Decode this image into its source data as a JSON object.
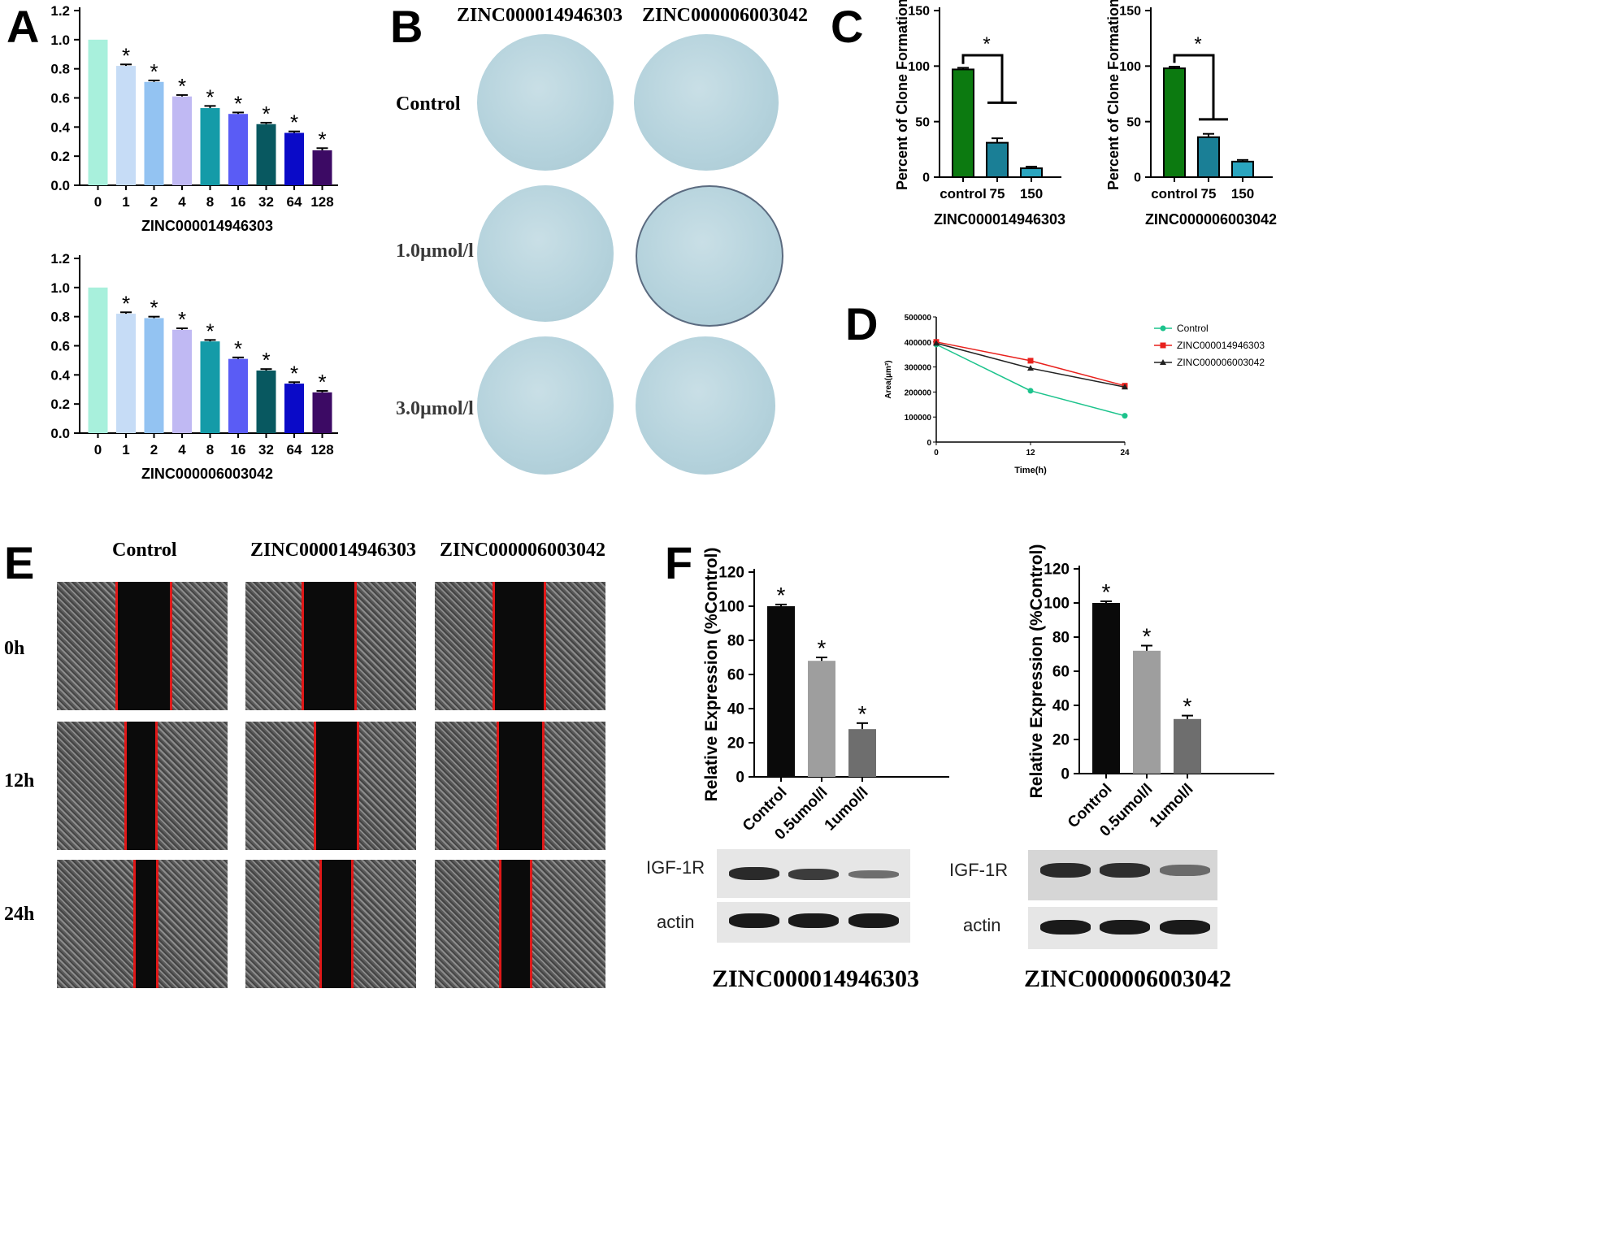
{
  "panels": {
    "A": "A",
    "B": "B",
    "C": "C",
    "D": "D",
    "E": "E",
    "F": "F"
  },
  "colors": {
    "bar_a": [
      "#a8f0dc",
      "#c6dcf6",
      "#93c3f2",
      "#c0b9f3",
      "#149ba8",
      "#5a5cf5",
      "#085860",
      "#0a0ac8",
      "#3c0a64"
    ],
    "green": "#0c7a10",
    "teal_dark": "#1a7f96",
    "teal_light": "#2aa5bf",
    "control": "#1cc38c",
    "zinc1": "#e8201c",
    "zinc2": "#222222",
    "red_line": "#e01818"
  },
  "compounds": {
    "c1": "ZINC000014946303",
    "c2": "ZINC000006003042"
  },
  "star": "*",
  "panel_a": {
    "yticks": [
      "1.2",
      "1.0",
      "0.8",
      "0.6",
      "0.4",
      "0.2",
      "0.0"
    ],
    "chart_data": [
      {
        "type": "bar",
        "title": "",
        "xlabel": "ZINC000014946303",
        "ylabel": "",
        "ylim": [
          0,
          1.2
        ],
        "categories": [
          "0",
          "1",
          "2",
          "4",
          "8",
          "16",
          "32",
          "64",
          "128"
        ],
        "values": [
          1.0,
          0.82,
          0.71,
          0.61,
          0.53,
          0.49,
          0.42,
          0.36,
          0.24
        ],
        "errors": [
          0,
          0.01,
          0.01,
          0.01,
          0.015,
          0.01,
          0.01,
          0.01,
          0.015
        ],
        "significant": [
          false,
          true,
          true,
          true,
          true,
          true,
          true,
          true,
          true
        ]
      },
      {
        "type": "bar",
        "title": "",
        "xlabel": "ZINC000006003042",
        "ylabel": "",
        "ylim": [
          0,
          1.2
        ],
        "categories": [
          "0",
          "1",
          "2",
          "4",
          "8",
          "16",
          "32",
          "64",
          "128"
        ],
        "values": [
          1.0,
          0.82,
          0.79,
          0.71,
          0.63,
          0.51,
          0.43,
          0.34,
          0.28
        ],
        "errors": [
          0,
          0.01,
          0.01,
          0.01,
          0.01,
          0.01,
          0.01,
          0.01,
          0.01
        ],
        "significant": [
          false,
          true,
          true,
          true,
          true,
          true,
          true,
          true,
          true
        ]
      }
    ]
  },
  "panel_b": {
    "col_labels": [
      "ZINC000014946303",
      "ZINC000006003042"
    ],
    "row_labels": [
      "Control",
      "1.0µmol/l",
      "3.0µmol/l"
    ]
  },
  "panel_c": {
    "yticks": [
      "150",
      "100",
      "50",
      "0"
    ],
    "chart_data": [
      {
        "type": "bar",
        "xlabel": "ZINC000014946303",
        "ylabel": "Percent of Clone Formation",
        "ylim": [
          0,
          150
        ],
        "categories": [
          "control",
          "75",
          "150"
        ],
        "values": [
          97,
          31,
          8
        ],
        "errors": [
          1.5,
          4,
          1.5
        ]
      },
      {
        "type": "bar",
        "xlabel": "ZINC000006003042",
        "ylabel": "Percent of Clone Formation",
        "ylim": [
          0,
          150
        ],
        "categories": [
          "control",
          "75",
          "150"
        ],
        "values": [
          98,
          36,
          14
        ],
        "errors": [
          1.5,
          3,
          1.5
        ]
      }
    ]
  },
  "panel_d": {
    "yticks": [
      "500000",
      "400000",
      "300000",
      "200000",
      "100000",
      "0"
    ],
    "xticks": [
      "0",
      "12",
      "24"
    ],
    "chart_data": {
      "type": "line",
      "xlabel": "Time(h)",
      "ylabel": "Area(μm²)",
      "xlim": [
        0,
        24
      ],
      "ylim": [
        0,
        500000
      ],
      "x": [
        0,
        12,
        24
      ],
      "series": [
        {
          "name": "Control",
          "values": [
            390000,
            205000,
            105000
          ]
        },
        {
          "name": "ZINC000014946303",
          "values": [
            400000,
            325000,
            225000
          ]
        },
        {
          "name": "ZINC000006003042",
          "values": [
            395000,
            295000,
            220000
          ]
        }
      ]
    }
  },
  "panel_e": {
    "col_labels": [
      "Control",
      "ZINC000014946303",
      "ZINC000006003042"
    ],
    "row_labels": [
      "0h",
      "12h",
      "24h"
    ]
  },
  "panel_f": {
    "yticks": [
      "120",
      "100",
      "80",
      "60",
      "40",
      "20",
      "0"
    ],
    "chart_data": [
      {
        "type": "bar",
        "ylabel": "Relative Expression (%Control)",
        "ylim": [
          0,
          120
        ],
        "categories": [
          "Control",
          "0.5umol/l",
          "1umol/l"
        ],
        "values": [
          100,
          68,
          28
        ],
        "errors": [
          1,
          2,
          3.5
        ]
      },
      {
        "type": "bar",
        "ylabel": "Relative Expression (%Control)",
        "ylim": [
          0,
          120
        ],
        "categories": [
          "Control",
          "0.5umol/l",
          "1umol/l"
        ],
        "values": [
          100,
          72,
          32
        ],
        "errors": [
          1,
          3,
          2
        ]
      }
    ],
    "blot_labels": [
      "IGF-1R",
      "actin"
    ],
    "captions": [
      "ZINC000014946303",
      "ZINC000006003042"
    ]
  }
}
